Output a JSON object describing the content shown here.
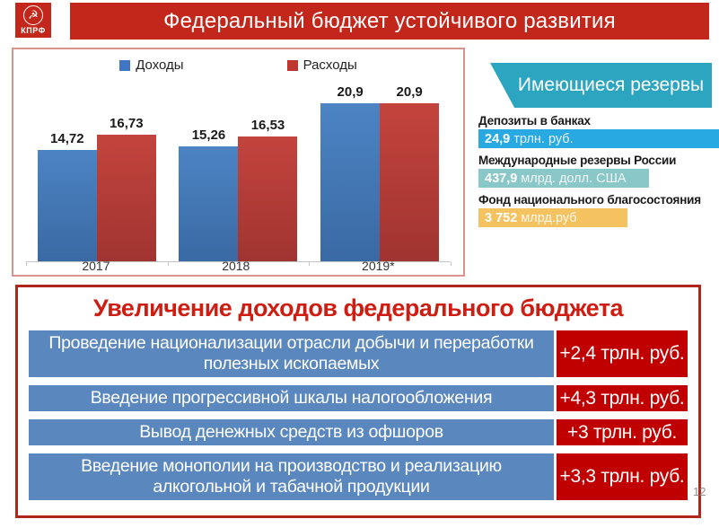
{
  "header": {
    "logo_text": "КПРФ",
    "hammer_sickle_glyph": "☭",
    "title": "Федеральный бюджет устойчивого развития"
  },
  "chart_data": {
    "type": "bar",
    "title": "",
    "xlabel": "",
    "ylabel": "",
    "categories": [
      "2017",
      "2018",
      "2019*"
    ],
    "series": [
      {
        "name": "Доходы",
        "color": "#3E76C4",
        "values": [
          14.72,
          15.26,
          20.9
        ],
        "labels": [
          "14,72",
          "15,26",
          "20,9"
        ]
      },
      {
        "name": "Расходы",
        "color": "#BE3831",
        "values": [
          16.73,
          16.53,
          20.9
        ],
        "labels": [
          "16,73",
          "16,53",
          "20,9"
        ]
      }
    ],
    "ylim": [
      0,
      24
    ],
    "grid": false,
    "legend_position": "top"
  },
  "reserves": {
    "title": "Имеющиеся резервы",
    "items": [
      {
        "label": "Депозиты в банках",
        "value": "24,9",
        "unit": "трлн. руб.",
        "color": "#29A9E1",
        "width_pct": 100
      },
      {
        "label": "Международные резервы России",
        "value": "437,9",
        "unit": "млрд. долл. США",
        "color": "#8AC7C8",
        "width_pct": 71
      },
      {
        "label": "Фонд национального благосостояния",
        "value": "3 752",
        "unit": "млрд.руб",
        "color": "#F5C260",
        "width_pct": 62
      }
    ]
  },
  "proposals": {
    "title": "Увеличение доходов федерального бюджета",
    "rows": [
      {
        "text": "Проведение национализации отрасли добычи и переработки полезных ископаемых",
        "value": "+2,4 трлн. руб."
      },
      {
        "text": "Введение прогрессивной шкалы налогообложения",
        "value": "+4,3 трлн. руб."
      },
      {
        "text": "Вывод денежных средств из офшоров",
        "value": "+3 трлн. руб."
      },
      {
        "text": "Введение монополии на производство и реализацию алкогольной и табачной продукции",
        "value": "+3,3 трлн. руб."
      }
    ]
  },
  "page_number": "12",
  "colors": {
    "header_red": "#C3271B",
    "chart_border": "#DB938C",
    "teal_header": "#2CA6C0",
    "bottom_border": "#B1261A",
    "bottom_title_red": "#CE1D12",
    "row_blue": "#5B87BF",
    "value_red": "#C00000"
  }
}
